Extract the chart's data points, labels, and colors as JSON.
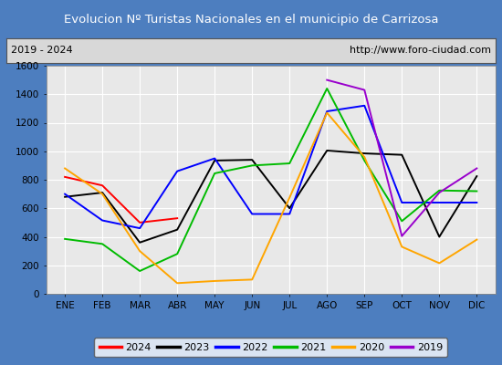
{
  "title": "Evolucion Nº Turistas Nacionales en el municipio de Carrizosa",
  "subtitle_left": "2019 - 2024",
  "subtitle_right": "http://www.foro-ciudad.com",
  "title_bg_color": "#4d7ebf",
  "title_text_color": "white",
  "months": [
    "ENE",
    "FEB",
    "MAR",
    "ABR",
    "MAY",
    "JUN",
    "JUL",
    "AGO",
    "SEP",
    "OCT",
    "NOV",
    "DIC"
  ],
  "ylim": [
    0,
    1600
  ],
  "yticks": [
    0,
    200,
    400,
    600,
    800,
    1000,
    1200,
    1400,
    1600
  ],
  "series": {
    "2024": {
      "color": "#ff0000",
      "data": [
        820,
        760,
        500,
        530,
        null,
        null,
        null,
        null,
        null,
        null,
        null,
        null
      ]
    },
    "2023": {
      "color": "#000000",
      "data": [
        680,
        710,
        360,
        450,
        935,
        940,
        600,
        1005,
        985,
        975,
        400,
        825
      ]
    },
    "2022": {
      "color": "#0000ff",
      "data": [
        700,
        515,
        460,
        860,
        950,
        560,
        560,
        1280,
        1320,
        640,
        640,
        640
      ]
    },
    "2021": {
      "color": "#00bb00",
      "data": [
        385,
        350,
        160,
        280,
        845,
        900,
        915,
        1440,
        935,
        510,
        725,
        720
      ]
    },
    "2020": {
      "color": "#ffa500",
      "data": [
        880,
        700,
        300,
        75,
        90,
        100,
        675,
        1270,
        960,
        330,
        215,
        380
      ]
    },
    "2019": {
      "color": "#9900cc",
      "data": [
        null,
        null,
        null,
        null,
        null,
        null,
        null,
        1500,
        1430,
        405,
        710,
        880
      ]
    }
  },
  "legend_order": [
    "2024",
    "2023",
    "2022",
    "2021",
    "2020",
    "2019"
  ],
  "plot_bg_color": "#e8e8e8",
  "grid_color": "#ffffff",
  "border_color": "#888888",
  "fig_bg_color": "#4d7ebf"
}
